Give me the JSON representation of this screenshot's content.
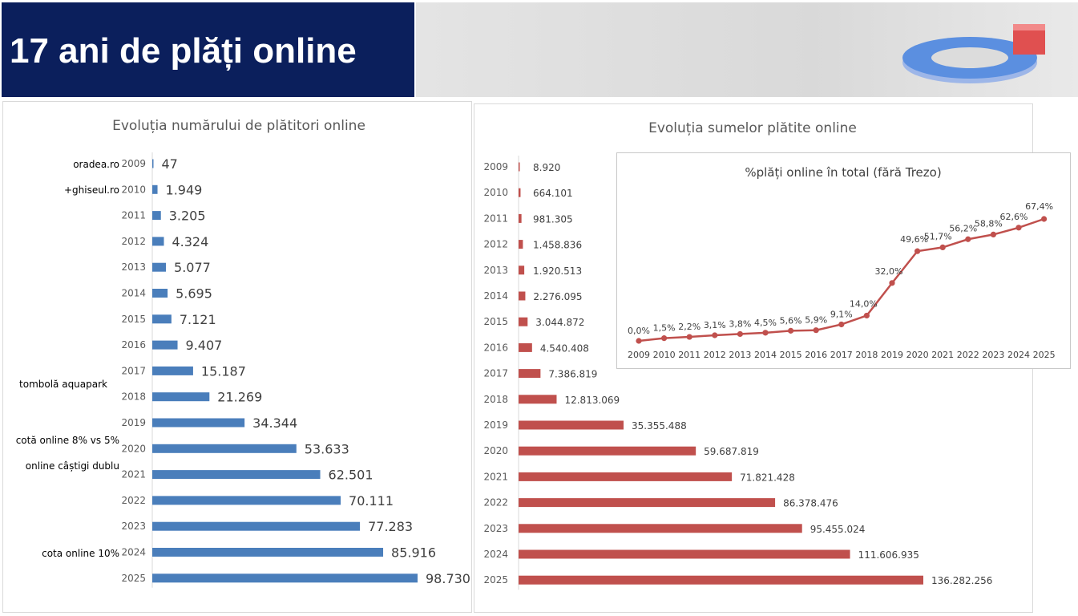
{
  "header": {
    "title": "17 ani de plăți online",
    "title_bg": "#0b1f5c"
  },
  "chart_data": [
    {
      "type": "bar",
      "orientation": "horizontal",
      "title": "Evoluția numărului de plătitori online",
      "categories": [
        "2009",
        "2010",
        "2011",
        "2012",
        "2013",
        "2014",
        "2015",
        "2016",
        "2017",
        "2018",
        "2019",
        "2020",
        "2021",
        "2022",
        "2023",
        "2024",
        "2025"
      ],
      "values": [
        47,
        1949,
        3205,
        4324,
        5077,
        5695,
        7121,
        9407,
        15187,
        21269,
        34344,
        53633,
        62501,
        70111,
        77283,
        85916,
        98730
      ],
      "value_labels": [
        "47",
        "1.949",
        "3.205",
        "4.324",
        "5.077",
        "5.695",
        "7.121",
        "9.407",
        "15.187",
        "21.269",
        "34.344",
        "53.633",
        "62.501",
        "70.111",
        "77.283",
        "85.916",
        "98.730"
      ],
      "color": "#4a7ebb",
      "annotations": [
        {
          "category": "2009",
          "text": "oradea.ro"
        },
        {
          "category": "2010",
          "text": "+ghiseul.ro"
        },
        {
          "category": "2017",
          "text": "tombolă aquapark"
        },
        {
          "category": "2020",
          "text": "cotă online 8% vs 5%"
        },
        {
          "category": "2020",
          "text": "online câștigi dublu"
        },
        {
          "category": "2024",
          "text": "cota online 10%"
        }
      ]
    },
    {
      "type": "bar",
      "orientation": "horizontal",
      "title": "Evoluția sumelor plătite online",
      "categories": [
        "2009",
        "2010",
        "2011",
        "2012",
        "2013",
        "2014",
        "2015",
        "2016",
        "2017",
        "2018",
        "2019",
        "2020",
        "2021",
        "2022",
        "2023",
        "2024",
        "2025"
      ],
      "values": [
        8920,
        664101,
        981305,
        1458836,
        1920513,
        2276095,
        3044872,
        4540408,
        7386819,
        12813069,
        35355488,
        59687819,
        71821428,
        86378476,
        95455024,
        111606935,
        136282256
      ],
      "value_labels": [
        "8.920",
        "664.101",
        "981.305",
        "1.458.836",
        "1.920.513",
        "2.276.095",
        "3.044.872",
        "4.540.408",
        "7.386.819",
        "12.813.069",
        "35.355.488",
        "59.687.819",
        "71.821.428",
        "86.378.476",
        "95.455.024",
        "111.606.935",
        "136.282.256"
      ],
      "color": "#c0504d"
    },
    {
      "type": "line",
      "title": "%plăți online în total (fără Trezo)",
      "x": [
        "2009",
        "2010",
        "2011",
        "2012",
        "2013",
        "2014",
        "2015",
        "2016",
        "2017",
        "2018",
        "2019",
        "2020",
        "2021",
        "2022",
        "2023",
        "2024",
        "2025"
      ],
      "values": [
        0.0,
        1.5,
        2.2,
        3.1,
        3.8,
        4.5,
        5.6,
        5.9,
        9.1,
        14.0,
        32.0,
        49.6,
        51.7,
        56.2,
        58.8,
        62.6,
        67.4
      ],
      "value_labels": [
        "0,0%",
        "1,5%",
        "2,2%",
        "3,1%",
        "3,8%",
        "4,5%",
        "5,6%",
        "5,9%",
        "9,1%",
        "14,0%",
        "32,0%",
        "49,6%",
        "51,7%",
        "56,2%",
        "58,8%",
        "62,6%",
        "67,4%"
      ],
      "color": "#c0504d"
    }
  ]
}
